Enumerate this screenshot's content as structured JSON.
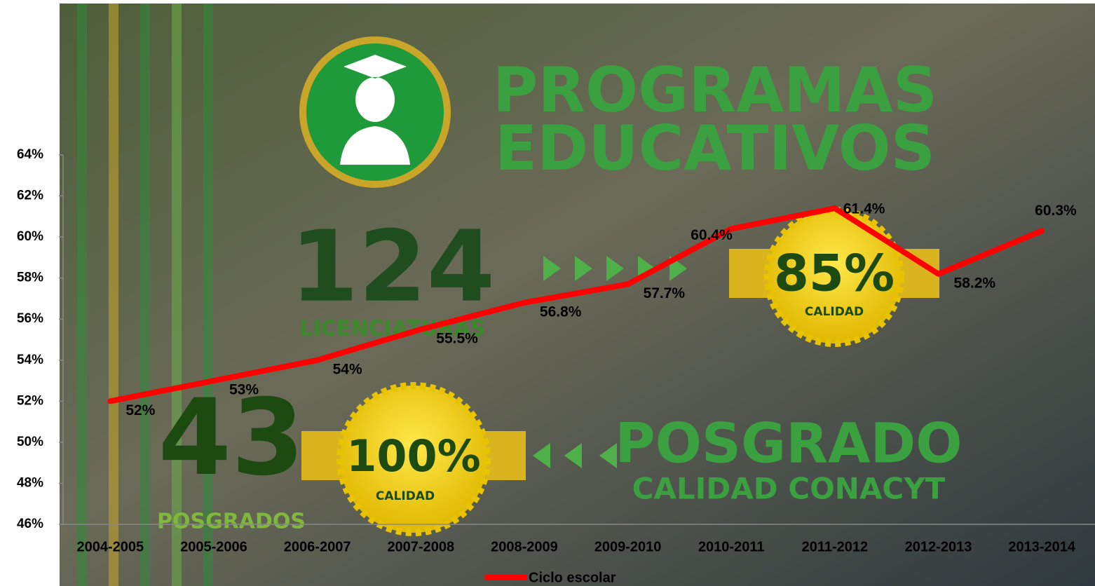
{
  "chart_data": {
    "type": "line",
    "categories": [
      "2004-2005",
      "2005-2006",
      "2006-2007",
      "2007-2008",
      "2008-2009",
      "2009-2010",
      "2010-2011",
      "2011-2012",
      "2012-2013",
      "2013-2014"
    ],
    "series": [
      {
        "name": "Ciclo escolar",
        "color": "#ff0000",
        "values": [
          52,
          53,
          54,
          55.5,
          56.8,
          57.7,
          60.4,
          61.4,
          58.2,
          60.3
        ],
        "value_labels": [
          "52%",
          "53%",
          "54%",
          "55.5%",
          "56.8%",
          "57.7%",
          "60.4%",
          "61.4%",
          "58.2%",
          "60.3%"
        ]
      }
    ],
    "ylim": [
      46,
      64
    ],
    "yticks": [
      {
        "value": 46,
        "label": "46%"
      },
      {
        "value": 48,
        "label": "48%"
      },
      {
        "value": 50,
        "label": "50%"
      },
      {
        "value": 52,
        "label": "52%"
      },
      {
        "value": 54,
        "label": "54%"
      },
      {
        "value": 56,
        "label": "56%"
      },
      {
        "value": 58,
        "label": "58%"
      },
      {
        "value": 60,
        "label": "60%"
      },
      {
        "value": 62,
        "label": "62%"
      },
      {
        "value": 64,
        "label": "64%"
      }
    ],
    "legend": "bottom",
    "annotations": [
      "PROGRAMAS",
      "EDUCATIVOS",
      "124",
      "LICENCIATURAS",
      "43",
      "POSGRADOS",
      "100%",
      "CALIDAD",
      "85%",
      "CALIDAD",
      "POSGRADO",
      "CALIDAD CONACYT"
    ]
  }
}
